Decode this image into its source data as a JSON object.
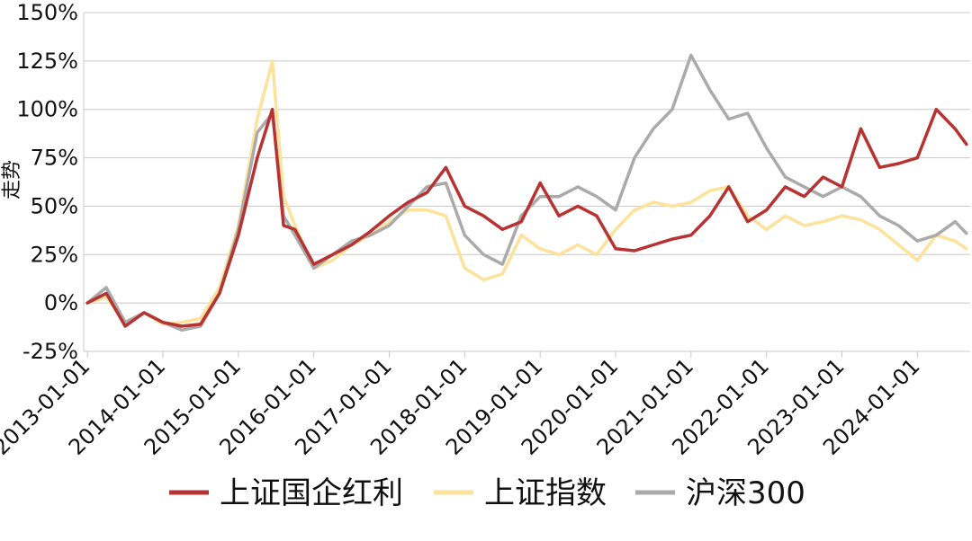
{
  "chart_data": {
    "type": "line",
    "ylabel": "走势",
    "xlabel": "",
    "ylim": [
      -25,
      150
    ],
    "yticks": [
      "-25%",
      "0%",
      "25%",
      "50%",
      "75%",
      "100%",
      "125%",
      "150%"
    ],
    "ytick_values": [
      -25,
      0,
      25,
      50,
      75,
      100,
      125,
      150
    ],
    "xticks": [
      "2013-01-01",
      "2014-01-01",
      "2015-01-01",
      "2016-01-01",
      "2017-01-01",
      "2018-01-01",
      "2019-01-01",
      "2020-01-01",
      "2021-01-01",
      "2022-01-01",
      "2023-01-01",
      "2024-01-01"
    ],
    "x": [
      2013.0,
      2013.25,
      2013.5,
      2013.75,
      2014.0,
      2014.25,
      2014.5,
      2014.75,
      2015.0,
      2015.25,
      2015.45,
      2015.6,
      2015.75,
      2016.0,
      2016.25,
      2016.5,
      2016.75,
      2017.0,
      2017.25,
      2017.5,
      2017.75,
      2018.0,
      2018.25,
      2018.5,
      2018.75,
      2019.0,
      2019.25,
      2019.5,
      2019.75,
      2020.0,
      2020.25,
      2020.5,
      2020.75,
      2021.0,
      2021.25,
      2021.5,
      2021.75,
      2022.0,
      2022.25,
      2022.5,
      2022.75,
      2023.0,
      2023.25,
      2023.5,
      2023.75,
      2024.0,
      2024.25,
      2024.5,
      2024.65
    ],
    "legend_position": "bottom",
    "grid": true,
    "series": [
      {
        "name": "上证国企红利",
        "color": "#b83232",
        "values": [
          0,
          5,
          -12,
          -5,
          -10,
          -12,
          -11,
          5,
          35,
          75,
          100,
          40,
          38,
          20,
          25,
          30,
          37,
          45,
          52,
          57,
          70,
          50,
          45,
          38,
          42,
          62,
          45,
          50,
          45,
          28,
          27,
          30,
          33,
          35,
          45,
          60,
          42,
          48,
          60,
          55,
          65,
          60,
          90,
          70,
          72,
          75,
          100,
          90,
          82
        ]
      },
      {
        "name": "上证指数",
        "color": "#fce29a",
        "values": [
          0,
          3,
          -10,
          -5,
          -11,
          -10,
          -8,
          8,
          40,
          95,
          125,
          55,
          40,
          18,
          22,
          30,
          35,
          42,
          48,
          48,
          45,
          18,
          12,
          15,
          35,
          28,
          25,
          30,
          25,
          38,
          48,
          52,
          50,
          52,
          58,
          60,
          45,
          38,
          45,
          40,
          42,
          45,
          43,
          38,
          30,
          22,
          35,
          32,
          28
        ]
      },
      {
        "name": "沪深300",
        "color": "#aaaaaa",
        "values": [
          0,
          8,
          -10,
          -5,
          -10,
          -14,
          -12,
          5,
          38,
          88,
          98,
          45,
          35,
          18,
          25,
          32,
          35,
          40,
          50,
          60,
          62,
          35,
          25,
          20,
          45,
          55,
          55,
          60,
          55,
          48,
          75,
          90,
          100,
          128,
          110,
          95,
          98,
          80,
          65,
          60,
          55,
          60,
          55,
          45,
          40,
          32,
          35,
          42,
          36
        ]
      }
    ]
  }
}
